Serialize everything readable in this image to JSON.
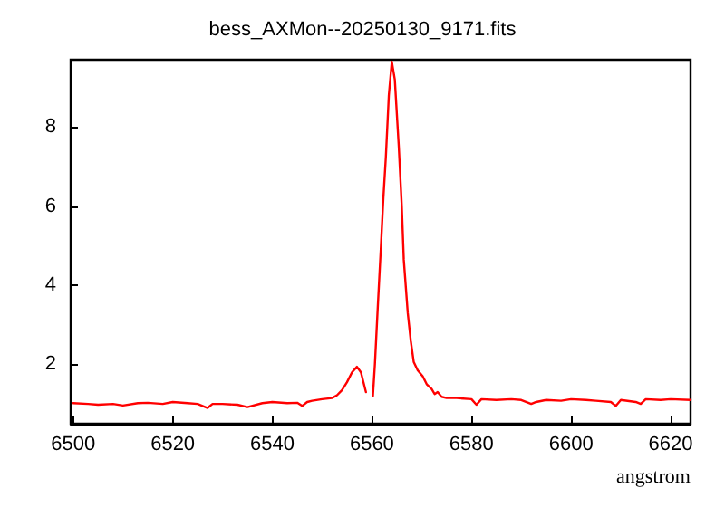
{
  "chart_data": {
    "type": "line",
    "title": "bess_AXMon--20250130_9171.fits",
    "xlabel": "angstrom",
    "xlim": [
      6499.5,
      6624
    ],
    "xticks": [
      6500,
      6520,
      6540,
      6560,
      6580,
      6600,
      6620
    ],
    "ylim": [
      0.5,
      9.7
    ],
    "yticks": [
      2,
      4,
      6,
      8
    ],
    "grid": false,
    "marker": "none",
    "line_style": "solid",
    "x": [
      6500,
      6503,
      6505,
      6508,
      6510,
      6513,
      6515,
      6518,
      6520,
      6523,
      6525,
      6527,
      6528,
      6530,
      6533,
      6535,
      6538,
      6540,
      6543,
      6545,
      6546,
      6547,
      6548,
      6550,
      6552,
      6553,
      6554,
      6555,
      6556,
      6557,
      6557.8,
      6558.4,
      6558.8,
      6559.3,
      6559.8,
      6560.2,
      6560.6,
      6561.2,
      6561.8,
      6562.3,
      6562.8,
      6563.4,
      6564,
      6564.6,
      6565.4,
      6566,
      6566.4,
      6567.2,
      6567.8,
      6568.4,
      6569.2,
      6570.2,
      6571,
      6572,
      6572.6,
      6573.2,
      6574,
      6575,
      6577,
      6580,
      6581,
      6582,
      6585,
      6588,
      6590,
      6592,
      6593,
      6595,
      6598,
      6600,
      6603,
      6605,
      6608,
      6609,
      6610,
      6613,
      6614,
      6615,
      6618,
      6620,
      6624
    ],
    "series": [
      {
        "color": "#ff0000",
        "values": [
          1.02,
          1.0,
          0.98,
          1.0,
          0.96,
          1.02,
          1.03,
          1.0,
          1.05,
          1.02,
          1.0,
          0.9,
          1.0,
          1.0,
          0.98,
          0.92,
          1.02,
          1.05,
          1.02,
          1.03,
          0.95,
          1.05,
          1.08,
          1.12,
          1.15,
          1.22,
          1.35,
          1.55,
          1.8,
          1.94,
          1.8,
          1.5,
          1.3,
          null,
          null,
          1.2,
          2.0,
          3.5,
          4.95,
          6.2,
          7.24,
          8.8,
          9.65,
          9.2,
          7.5,
          6.0,
          4.65,
          3.3,
          2.6,
          2.06,
          1.85,
          1.7,
          1.5,
          1.38,
          1.25,
          1.3,
          1.18,
          1.15,
          1.15,
          1.12,
          0.98,
          1.12,
          1.1,
          1.12,
          1.1,
          1.0,
          1.05,
          1.1,
          1.08,
          1.12,
          1.1,
          1.08,
          1.05,
          0.95,
          1.1,
          1.05,
          1.0,
          1.12,
          1.1,
          1.12,
          1.1
        ]
      }
    ]
  }
}
